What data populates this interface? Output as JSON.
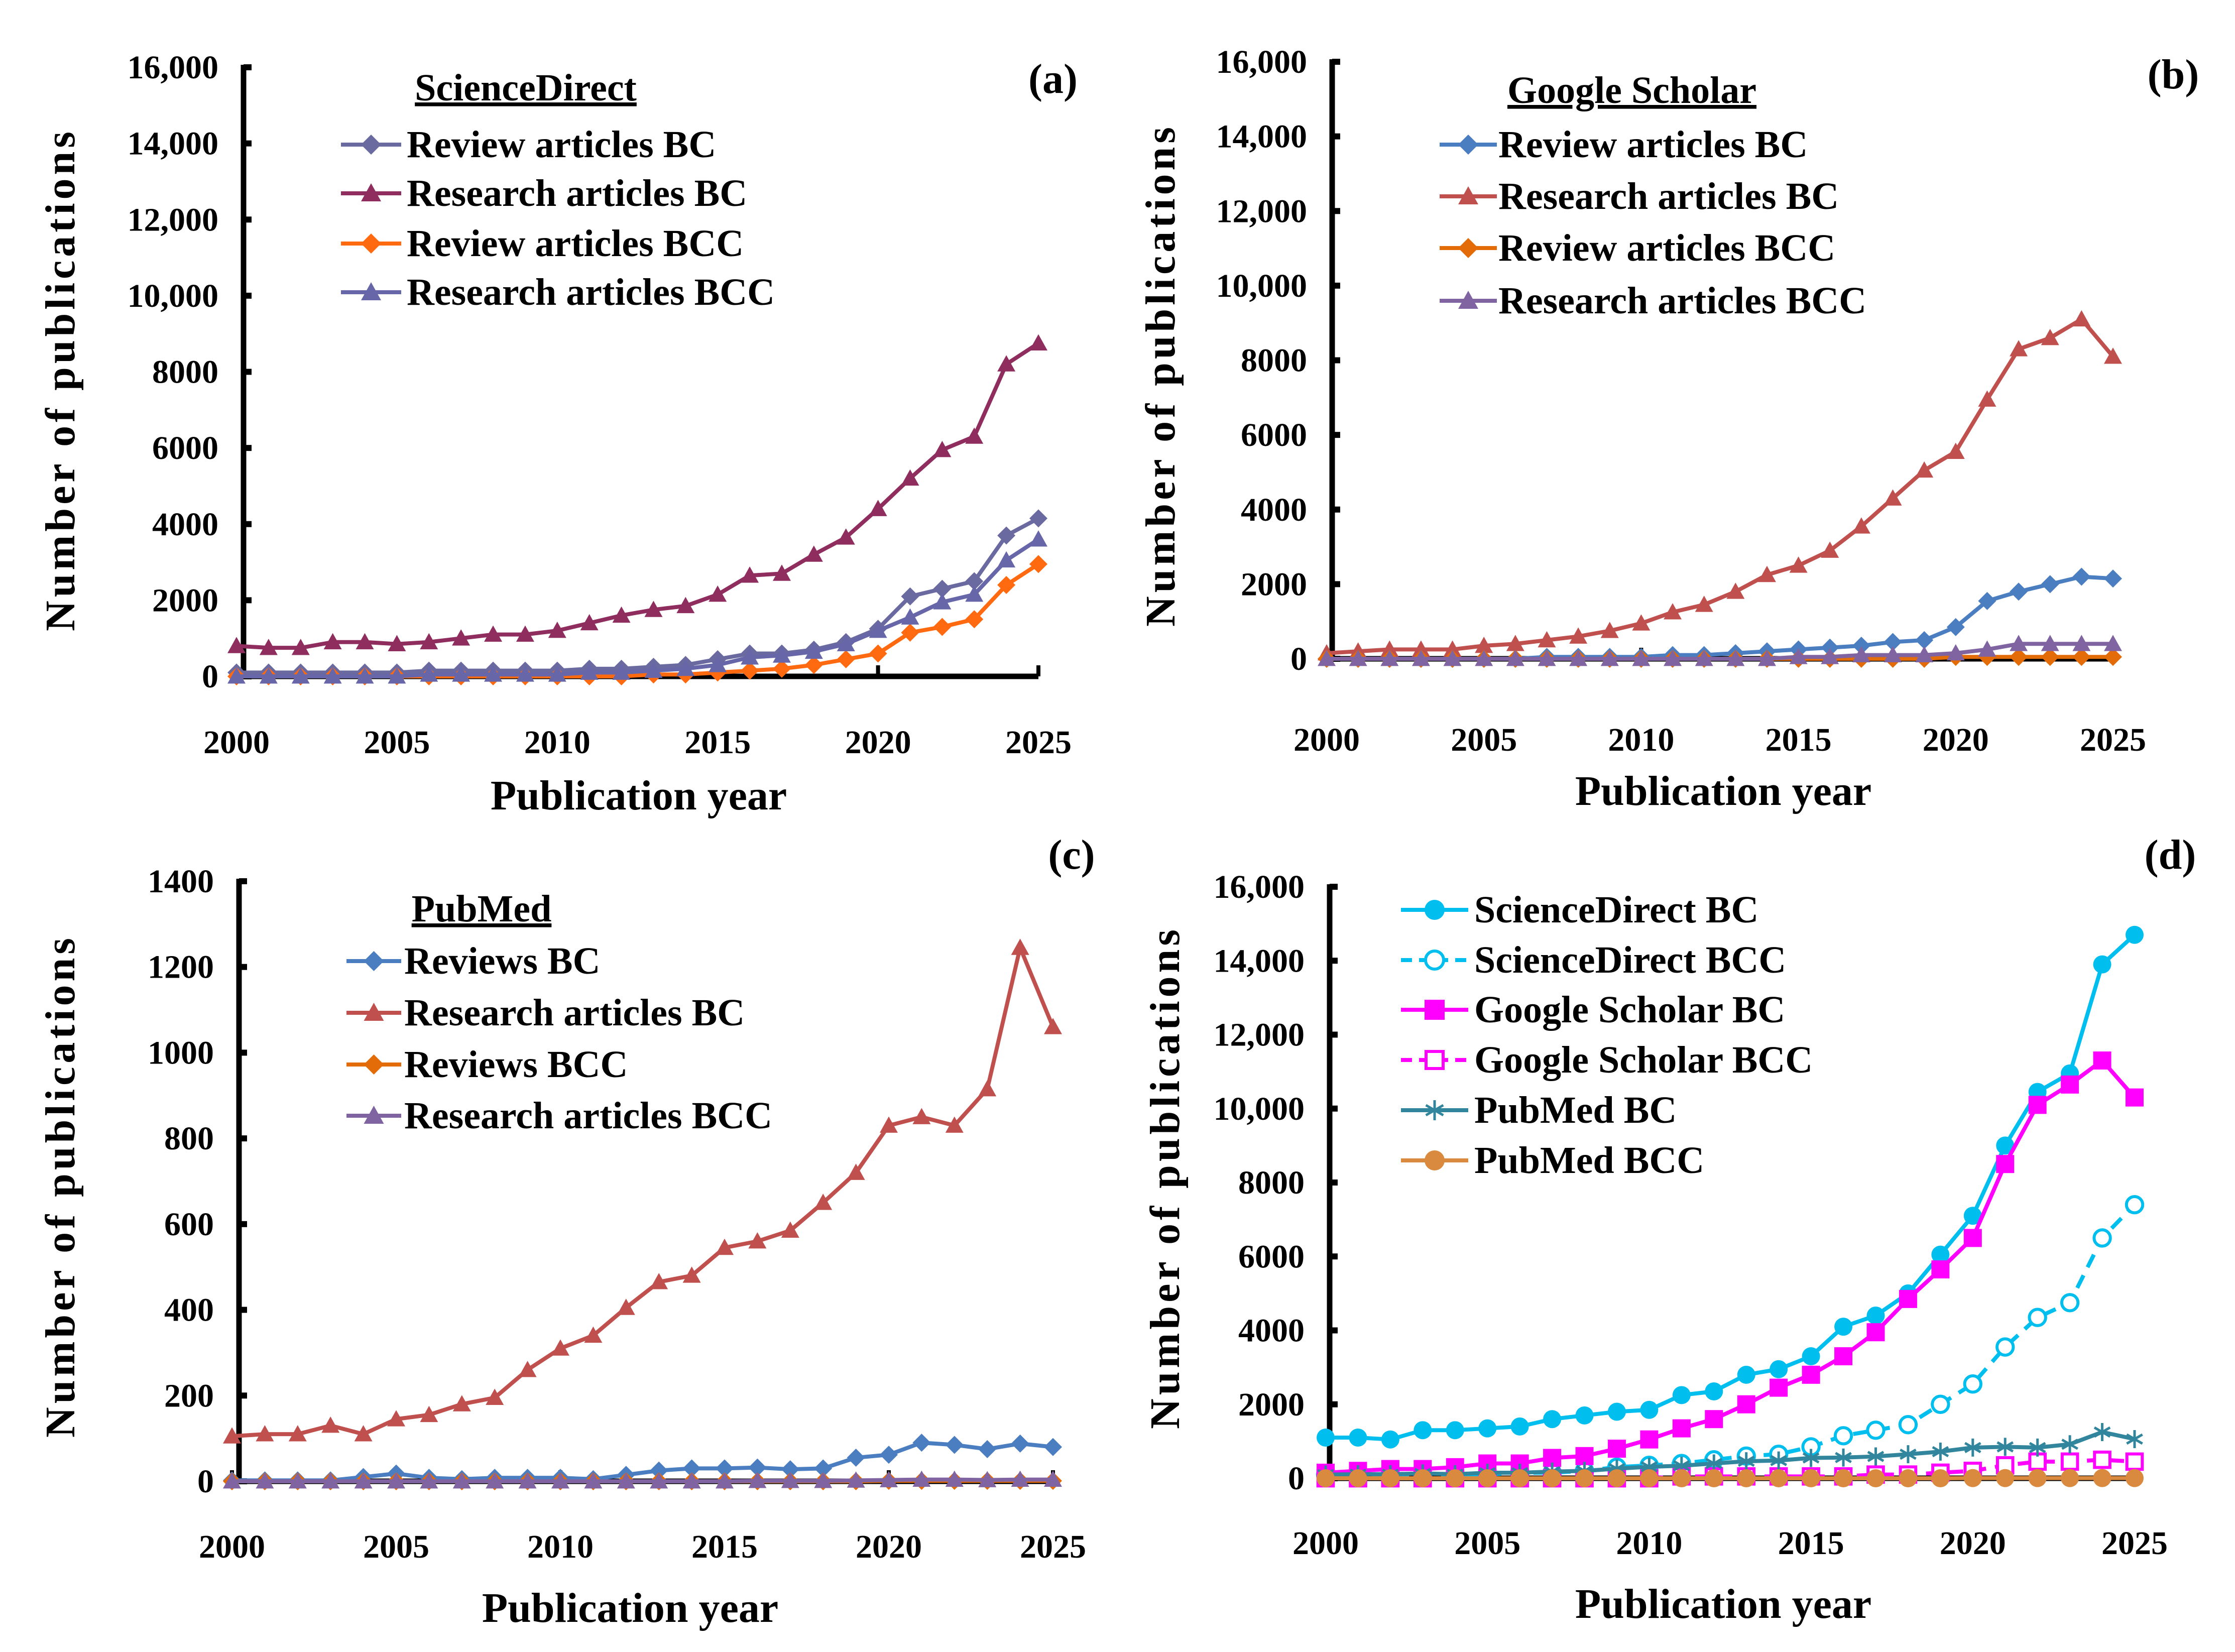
{
  "chart_data": [
    {
      "type": "line",
      "panel_label": "(a)",
      "legend_title": "ScienceDirect",
      "xlabel": "Publication year",
      "ylabel": "Number of publications",
      "xlim": [
        2000,
        2025
      ],
      "ylim": [
        0,
        16000
      ],
      "x_ticks": [
        2000,
        2005,
        2010,
        2015,
        2020,
        2025
      ],
      "y_ticks": [
        0,
        2000,
        4000,
        6000,
        8000,
        10000,
        12000,
        14000,
        16000
      ],
      "y_tick_labels": [
        "0",
        "2000",
        "4000",
        "6000",
        "8000",
        "10,000",
        "12,000",
        "14,000",
        "16,000"
      ],
      "legend_placement": "top-left",
      "x": [
        2000,
        2001,
        2002,
        2003,
        2004,
        2005,
        2006,
        2007,
        2008,
        2009,
        2010,
        2011,
        2012,
        2013,
        2014,
        2015,
        2016,
        2017,
        2018,
        2019,
        2020,
        2021,
        2022,
        2023,
        2024,
        2025
      ],
      "series": [
        {
          "name": "Review articles BC",
          "color": "#6A6AA0",
          "marker": "diamond",
          "dashed": false,
          "values": [
            100,
            100,
            100,
            100,
            100,
            100,
            150,
            150,
            150,
            150,
            150,
            200,
            200,
            250,
            300,
            450,
            600,
            600,
            700,
            900,
            1250,
            2100,
            2300,
            2500,
            3700,
            4150
          ]
        },
        {
          "name": "Research articles BC",
          "color": "#8E2D5E",
          "marker": "triangle",
          "dashed": false,
          "values": [
            800,
            750,
            750,
            900,
            900,
            850,
            900,
            1000,
            1100,
            1100,
            1200,
            1400,
            1600,
            1750,
            1850,
            2150,
            2650,
            2700,
            3200,
            3650,
            4400,
            5200,
            5950,
            6300,
            8200,
            8750
          ]
        },
        {
          "name": "Review articles BCC",
          "color": "#FF6A10",
          "marker": "diamond",
          "dashed": false,
          "values": [
            0,
            0,
            0,
            0,
            0,
            0,
            0,
            0,
            0,
            0,
            0,
            0,
            0,
            50,
            50,
            100,
            150,
            200,
            300,
            450,
            600,
            1150,
            1300,
            1500,
            2400,
            2950
          ]
        },
        {
          "name": "Research articles BCC",
          "color": "#6666A8",
          "marker": "triangle",
          "dashed": false,
          "values": [
            0,
            0,
            0,
            0,
            0,
            0,
            50,
            50,
            50,
            50,
            50,
            100,
            100,
            150,
            200,
            300,
            500,
            550,
            650,
            850,
            1200,
            1550,
            1950,
            2150,
            3050,
            3600
          ]
        }
      ]
    },
    {
      "type": "line",
      "panel_label": "(b)",
      "legend_title": "Google Scholar",
      "xlabel": "Publication year",
      "ylabel": "Number of publications",
      "xlim": [
        2000,
        2025
      ],
      "ylim": [
        0,
        16000
      ],
      "x_ticks": [
        2000,
        2005,
        2010,
        2015,
        2020,
        2025
      ],
      "y_ticks": [
        0,
        2000,
        4000,
        6000,
        8000,
        10000,
        12000,
        14000,
        16000
      ],
      "y_tick_labels": [
        "0",
        "2000",
        "4000",
        "6000",
        "8000",
        "10,000",
        "12,000",
        "14,000",
        "16,000"
      ],
      "legend_placement": "top-left",
      "x": [
        2000,
        2001,
        2002,
        2003,
        2004,
        2005,
        2006,
        2007,
        2008,
        2009,
        2010,
        2011,
        2012,
        2013,
        2014,
        2015,
        2016,
        2017,
        2018,
        2019,
        2020,
        2021,
        2022,
        2023,
        2024,
        2025
      ],
      "series": [
        {
          "name": "Review articles BC",
          "color": "#4A7EC0",
          "marker": "diamond",
          "dashed": false,
          "values": [
            0,
            0,
            0,
            0,
            0,
            0,
            0,
            50,
            50,
            50,
            50,
            100,
            100,
            150,
            200,
            250,
            300,
            350,
            450,
            500,
            850,
            1550,
            1800,
            2000,
            2200,
            2150
          ]
        },
        {
          "name": "Research articles BC",
          "color": "#C0504D",
          "marker": "triangle",
          "dashed": false,
          "values": [
            150,
            200,
            250,
            250,
            250,
            350,
            400,
            500,
            600,
            750,
            950,
            1250,
            1450,
            1800,
            2250,
            2500,
            2900,
            3550,
            4300,
            5050,
            5550,
            6950,
            8300,
            8600,
            9100,
            8100
          ]
        },
        {
          "name": "Review articles BCC",
          "color": "#E36C09",
          "marker": "diamond",
          "dashed": false,
          "values": [
            0,
            0,
            0,
            0,
            0,
            0,
            0,
            0,
            0,
            0,
            0,
            0,
            0,
            0,
            0,
            0,
            0,
            0,
            0,
            0,
            50,
            50,
            50,
            50,
            50,
            50
          ]
        },
        {
          "name": "Research articles BCC",
          "color": "#8064A2",
          "marker": "triangle",
          "dashed": false,
          "values": [
            0,
            0,
            0,
            0,
            0,
            0,
            0,
            0,
            0,
            0,
            0,
            0,
            0,
            0,
            0,
            50,
            50,
            100,
            100,
            100,
            150,
            250,
            400,
            400,
            400,
            400
          ]
        }
      ]
    },
    {
      "type": "line",
      "panel_label": "(c)",
      "legend_title": "PubMed",
      "xlabel": "Publication year",
      "ylabel": "Number of publications",
      "xlim": [
        2000,
        2025
      ],
      "ylim": [
        0,
        1400
      ],
      "x_ticks": [
        2000,
        2005,
        2010,
        2015,
        2020,
        2025
      ],
      "y_ticks": [
        0,
        200,
        400,
        600,
        800,
        1000,
        1200,
        1400
      ],
      "y_tick_labels": [
        "0",
        "200",
        "400",
        "600",
        "800",
        "1000",
        "1200",
        "1400"
      ],
      "legend_placement": "top-left",
      "x": [
        2000,
        2001,
        2002,
        2003,
        2004,
        2005,
        2006,
        2007,
        2008,
        2009,
        2010,
        2011,
        2012,
        2013,
        2014,
        2015,
        2016,
        2017,
        2018,
        2019,
        2020,
        2021,
        2022,
        2023,
        2024,
        2025
      ],
      "series": [
        {
          "name": "Reviews BC",
          "color": "#4A7EC0",
          "marker": "diamond",
          "dashed": false,
          "values": [
            2,
            2,
            2,
            2,
            10,
            18,
            8,
            5,
            8,
            8,
            8,
            5,
            15,
            25,
            30,
            30,
            32,
            28,
            30,
            55,
            62,
            90,
            85,
            75,
            88,
            80
          ]
        },
        {
          "name": "Research articles BC",
          "color": "#C0504D",
          "marker": "triangle",
          "dashed": false,
          "values": [
            105,
            110,
            110,
            130,
            110,
            145,
            155,
            180,
            195,
            260,
            310,
            340,
            405,
            465,
            480,
            545,
            560,
            585,
            650,
            720,
            830,
            850,
            830,
            915,
            1245,
            1060
          ]
        },
        {
          "name": "Reviews BCC",
          "color": "#E36C09",
          "marker": "diamond",
          "dashed": false,
          "values": [
            0,
            0,
            0,
            0,
            0,
            0,
            0,
            0,
            0,
            0,
            0,
            0,
            0,
            0,
            0,
            0,
            0,
            0,
            0,
            0,
            1,
            1,
            1,
            1,
            1,
            1
          ]
        },
        {
          "name": "Research articles BCC",
          "color": "#8064A2",
          "marker": "triangle",
          "dashed": false,
          "values": [
            0,
            0,
            0,
            0,
            0,
            0,
            0,
            0,
            0,
            0,
            0,
            0,
            0,
            0,
            0,
            0,
            1,
            1,
            1,
            2,
            3,
            4,
            4,
            3,
            4,
            4
          ]
        }
      ]
    },
    {
      "type": "line",
      "panel_label": "(d)",
      "legend_title": "",
      "xlabel": "Publication year",
      "ylabel": "Number of publications",
      "xlim": [
        2000,
        2025
      ],
      "ylim": [
        0,
        16000
      ],
      "x_ticks": [
        2000,
        2005,
        2010,
        2015,
        2020,
        2025
      ],
      "y_ticks": [
        0,
        2000,
        4000,
        6000,
        8000,
        10000,
        12000,
        14000,
        16000
      ],
      "y_tick_labels": [
        "0",
        "2000",
        "4000",
        "6000",
        "8000",
        "10,000",
        "12,000",
        "14,000",
        "16,000"
      ],
      "legend_placement": "top-left",
      "x": [
        2000,
        2001,
        2002,
        2003,
        2004,
        2005,
        2006,
        2007,
        2008,
        2009,
        2010,
        2011,
        2012,
        2013,
        2014,
        2015,
        2016,
        2017,
        2018,
        2019,
        2020,
        2021,
        2022,
        2023,
        2024,
        2025
      ],
      "series": [
        {
          "name": "ScienceDirect BC",
          "color": "#00BFEF",
          "marker": "circle",
          "dashed": false,
          "values": [
            1100,
            1100,
            1050,
            1300,
            1300,
            1350,
            1400,
            1600,
            1700,
            1800,
            1850,
            2250,
            2350,
            2800,
            2950,
            3300,
            4100,
            4400,
            5000,
            6050,
            7100,
            9000,
            10450,
            10950,
            13900,
            14700
          ]
        },
        {
          "name": "ScienceDirect BCC",
          "color": "#00BFEF",
          "marker": "circle-open",
          "dashed": true,
          "values": [
            100,
            100,
            100,
            100,
            100,
            100,
            150,
            150,
            200,
            300,
            350,
            400,
            500,
            600,
            650,
            850,
            1150,
            1300,
            1450,
            2000,
            2550,
            3550,
            4350,
            4750,
            6500,
            7400
          ]
        },
        {
          "name": "Google Scholar BC",
          "color": "#FF00FF",
          "marker": "square",
          "dashed": false,
          "values": [
            150,
            200,
            250,
            250,
            300,
            400,
            400,
            550,
            600,
            800,
            1050,
            1350,
            1600,
            2000,
            2450,
            2800,
            3300,
            3950,
            4850,
            5650,
            6500,
            8500,
            10100,
            10650,
            11300,
            10300
          ]
        },
        {
          "name": "Google Scholar BCC",
          "color": "#FF00FF",
          "marker": "square-open",
          "dashed": true,
          "values": [
            0,
            0,
            0,
            0,
            0,
            0,
            0,
            0,
            0,
            0,
            0,
            50,
            50,
            50,
            50,
            50,
            50,
            100,
            100,
            150,
            200,
            350,
            450,
            450,
            500,
            450
          ]
        },
        {
          "name": "PubMed BC",
          "color": "#31859C",
          "marker": "asterisk",
          "dashed": false,
          "values": [
            100,
            110,
            110,
            130,
            110,
            150,
            150,
            180,
            200,
            260,
            310,
            340,
            400,
            460,
            480,
            550,
            560,
            590,
            650,
            720,
            830,
            850,
            830,
            920,
            1250,
            1060
          ]
        },
        {
          "name": "PubMed BCC",
          "color": "#D98A3E",
          "marker": "circle",
          "dashed": false,
          "values": [
            0,
            0,
            0,
            0,
            0,
            0,
            0,
            0,
            0,
            0,
            0,
            0,
            0,
            0,
            0,
            0,
            0,
            0,
            0,
            0,
            5,
            5,
            5,
            5,
            5,
            5
          ]
        }
      ]
    }
  ]
}
